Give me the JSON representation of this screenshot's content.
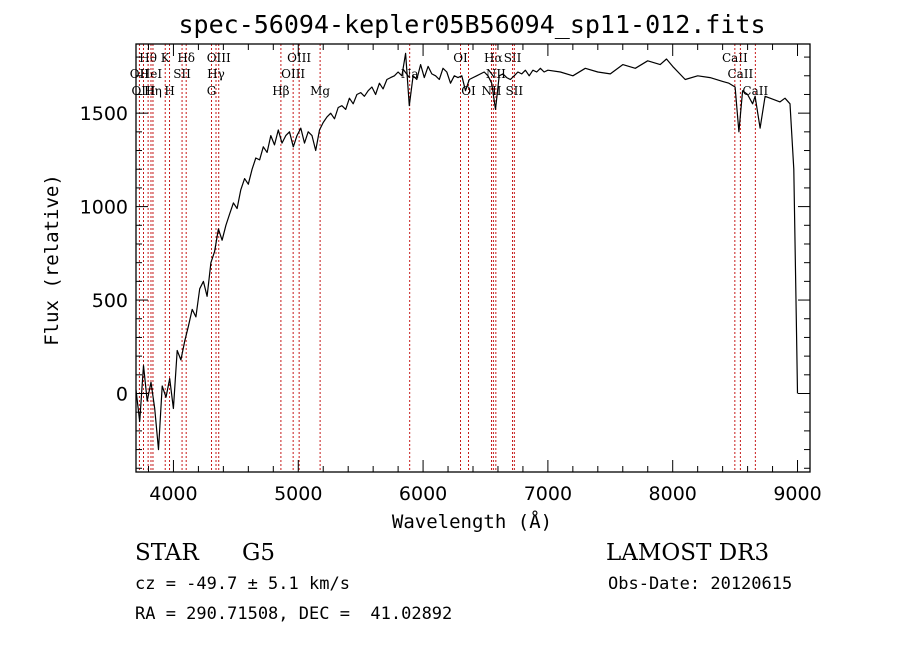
{
  "chart_data": {
    "type": "line",
    "title": "spec-56094-kepler05B56094_sp11-012.fits",
    "xlabel": "Wavelength (Å)",
    "ylabel": "Flux (relative)",
    "xlim": [
      3700,
      9100
    ],
    "ylim": [
      -420,
      1870
    ],
    "x_ticks": [
      4000,
      5000,
      6000,
      7000,
      8000,
      9000
    ],
    "y_ticks": [
      0,
      500,
      1000,
      1500
    ],
    "x_minor_step": 200,
    "y_minor_step": 100,
    "series": [
      {
        "name": "spectrum",
        "x": [
          3700,
          3730,
          3760,
          3790,
          3820,
          3850,
          3880,
          3910,
          3940,
          3970,
          4000,
          4030,
          4060,
          4090,
          4120,
          4150,
          4180,
          4210,
          4240,
          4270,
          4300,
          4330,
          4360,
          4390,
          4420,
          4450,
          4480,
          4510,
          4540,
          4570,
          4600,
          4630,
          4660,
          4690,
          4720,
          4750,
          4780,
          4810,
          4840,
          4870,
          4900,
          4930,
          4960,
          4990,
          5020,
          5050,
          5080,
          5110,
          5140,
          5170,
          5200,
          5230,
          5260,
          5290,
          5320,
          5350,
          5380,
          5410,
          5440,
          5470,
          5500,
          5530,
          5560,
          5590,
          5620,
          5650,
          5680,
          5710,
          5740,
          5770,
          5800,
          5830,
          5860,
          5890,
          5920,
          5950,
          5980,
          6010,
          6040,
          6070,
          6100,
          6130,
          6160,
          6190,
          6220,
          6250,
          6280,
          6310,
          6340,
          6370,
          6400,
          6430,
          6460,
          6490,
          6520,
          6550,
          6580,
          6610,
          6640,
          6670,
          6700,
          6730,
          6760,
          6790,
          6820,
          6850,
          6880,
          6910,
          6940,
          6970,
          7000,
          7100,
          7200,
          7300,
          7400,
          7500,
          7600,
          7700,
          7800,
          7900,
          7950,
          8000,
          8100,
          8200,
          8300,
          8400,
          8450,
          8500,
          8530,
          8560,
          8600,
          8640,
          8660,
          8700,
          8740,
          8780,
          8820,
          8860,
          8900,
          8940,
          8970,
          8990,
          9000
        ],
        "y": [
          20,
          -150,
          150,
          -40,
          60,
          -80,
          -300,
          40,
          -20,
          80,
          -80,
          230,
          180,
          280,
          360,
          450,
          410,
          560,
          600,
          520,
          700,
          760,
          880,
          820,
          900,
          960,
          1020,
          990,
          1090,
          1150,
          1120,
          1200,
          1260,
          1250,
          1320,
          1290,
          1380,
          1330,
          1410,
          1340,
          1380,
          1400,
          1320,
          1380,
          1420,
          1340,
          1400,
          1380,
          1300,
          1410,
          1450,
          1480,
          1500,
          1470,
          1530,
          1540,
          1520,
          1580,
          1550,
          1600,
          1610,
          1590,
          1620,
          1640,
          1600,
          1660,
          1630,
          1680,
          1690,
          1700,
          1720,
          1700,
          1820,
          1540,
          1700,
          1680,
          1760,
          1690,
          1750,
          1710,
          1700,
          1680,
          1740,
          1720,
          1660,
          1700,
          1690,
          1700,
          1620,
          1680,
          1690,
          1700,
          1710,
          1720,
          1700,
          1660,
          1520,
          1700,
          1710,
          1690,
          1680,
          1700,
          1720,
          1710,
          1730,
          1700,
          1730,
          1720,
          1740,
          1720,
          1730,
          1720,
          1700,
          1740,
          1720,
          1710,
          1760,
          1740,
          1780,
          1760,
          1790,
          1750,
          1680,
          1700,
          1690,
          1670,
          1660,
          1640,
          1400,
          1620,
          1600,
          1550,
          1590,
          1420,
          1590,
          1580,
          1570,
          1560,
          1580,
          1550,
          1200,
          400,
          0
        ]
      }
    ],
    "line_markers": [
      {
        "label": "Hθ",
        "x": 3797,
        "row": 1
      },
      {
        "label": "OII",
        "x": 3727,
        "row": 2
      },
      {
        "label": "OIII",
        "x": 3760,
        "row": 3
      },
      {
        "label": "HeI",
        "x": 3820,
        "row": 2
      },
      {
        "label": "Hη",
        "x": 3836,
        "row": 3
      },
      {
        "label": "K",
        "x": 3934,
        "row": 1
      },
      {
        "label": "H",
        "x": 3969,
        "row": 3
      },
      {
        "label": "SII",
        "x": 4069,
        "row": 2
      },
      {
        "label": "Hδ",
        "x": 4102,
        "row": 1
      },
      {
        "label": "G",
        "x": 4305,
        "row": 3
      },
      {
        "label": "OIII",
        "x": 4363,
        "row": 1
      },
      {
        "label": "Hγ",
        "x": 4341,
        "row": 2
      },
      {
        "label": "Hβ",
        "x": 4861,
        "row": 3
      },
      {
        "label": "OIII",
        "x": 4959,
        "row": 2
      },
      {
        "label": "OIII",
        "x": 5007,
        "row": 1
      },
      {
        "label": "Mg",
        "x": 5175,
        "row": 3
      },
      {
        "label": "Na",
        "x": 5893,
        "row": 2
      },
      {
        "label": "OI",
        "x": 6300,
        "row": 1
      },
      {
        "label": "OI",
        "x": 6364,
        "row": 3
      },
      {
        "label": "NII",
        "x": 6548,
        "row": 3
      },
      {
        "label": "Hα",
        "x": 6563,
        "row": 1
      },
      {
        "label": "NII",
        "x": 6583,
        "row": 2
      },
      {
        "label": "SII",
        "x": 6717,
        "row": 1
      },
      {
        "label": "SII",
        "x": 6731,
        "row": 3
      },
      {
        "label": "CaII",
        "x": 8498,
        "row": 1
      },
      {
        "label": "CaII",
        "x": 8542,
        "row": 2
      },
      {
        "label": "CaII",
        "x": 8662,
        "row": 3
      }
    ],
    "grid": false,
    "legend": "none"
  },
  "info": {
    "object_class": "STAR",
    "subclass": "G5",
    "survey": "LAMOST DR3",
    "redshift_line": "cz = -49.7 ± 5.1 km/s",
    "obs_date_line": "Obs-Date: 20120615",
    "coords_line": "RA = 290.71508, DEC =  41.02892"
  },
  "colors": {
    "spectrum": "#000000",
    "marker_line": "#c00000",
    "axis": "#000000"
  }
}
